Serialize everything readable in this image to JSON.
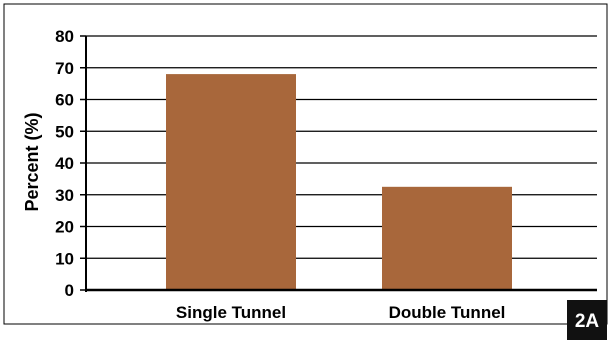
{
  "panel_label": "2A",
  "colors": {
    "bar": "#a8673b",
    "grid": "#000000",
    "frame": "#000000",
    "panel_label_bg": "#111111",
    "panel_label_text": "#ffffff"
  },
  "chart_data": {
    "type": "bar",
    "title": "",
    "xlabel": "",
    "ylabel": "Percent (%)",
    "categories": [
      "Single Tunnel",
      "Double Tunnel"
    ],
    "values": [
      68,
      32.5
    ],
    "ylim": [
      0,
      80
    ],
    "yticks": [
      0,
      10,
      20,
      30,
      40,
      50,
      60,
      70,
      80
    ],
    "grid": true,
    "legend": "none"
  }
}
